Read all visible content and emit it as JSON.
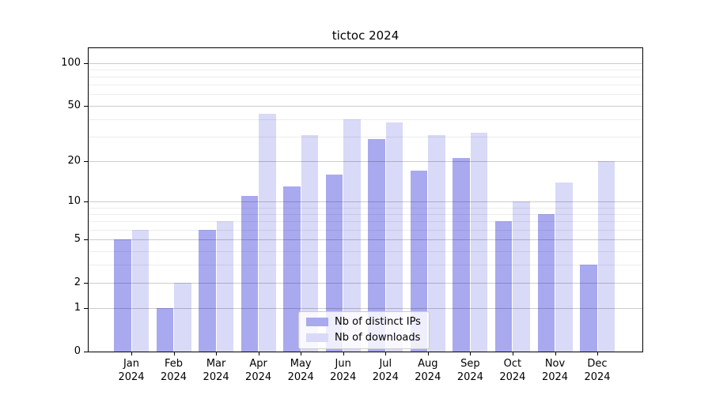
{
  "chart_data": {
    "type": "bar",
    "title": "tictoc 2024",
    "categories": [
      "Jan",
      "Feb",
      "Mar",
      "Apr",
      "May",
      "Jun",
      "Jul",
      "Aug",
      "Sep",
      "Oct",
      "Nov",
      "Dec"
    ],
    "x_year_label": "2024",
    "series": [
      {
        "name": "Nb of distinct IPs",
        "color": "#a9a9f0",
        "values": [
          5,
          1,
          6,
          11,
          13,
          16,
          29,
          17,
          21,
          7,
          8,
          3
        ]
      },
      {
        "name": "Nb of downloads",
        "color": "#d9d9f8",
        "values": [
          6,
          2,
          7,
          44,
          31,
          40,
          38,
          31,
          32,
          10,
          14,
          20
        ]
      }
    ],
    "y_scale": "log1p",
    "y_ticks": [
      0,
      1,
      2,
      5,
      10,
      20,
      50,
      100
    ],
    "y_minor_gridlines": [
      3,
      4,
      6,
      7,
      8,
      9,
      30,
      40,
      60,
      70,
      80,
      90
    ],
    "ylim": [
      0,
      127
    ],
    "xlabel": "",
    "ylabel": "",
    "grid": true,
    "legend_position": "lower center",
    "colors": {
      "axis": "#000000",
      "grid_major": "#cccccc",
      "grid_minor": "#ececec",
      "background": "#ffffff"
    }
  }
}
